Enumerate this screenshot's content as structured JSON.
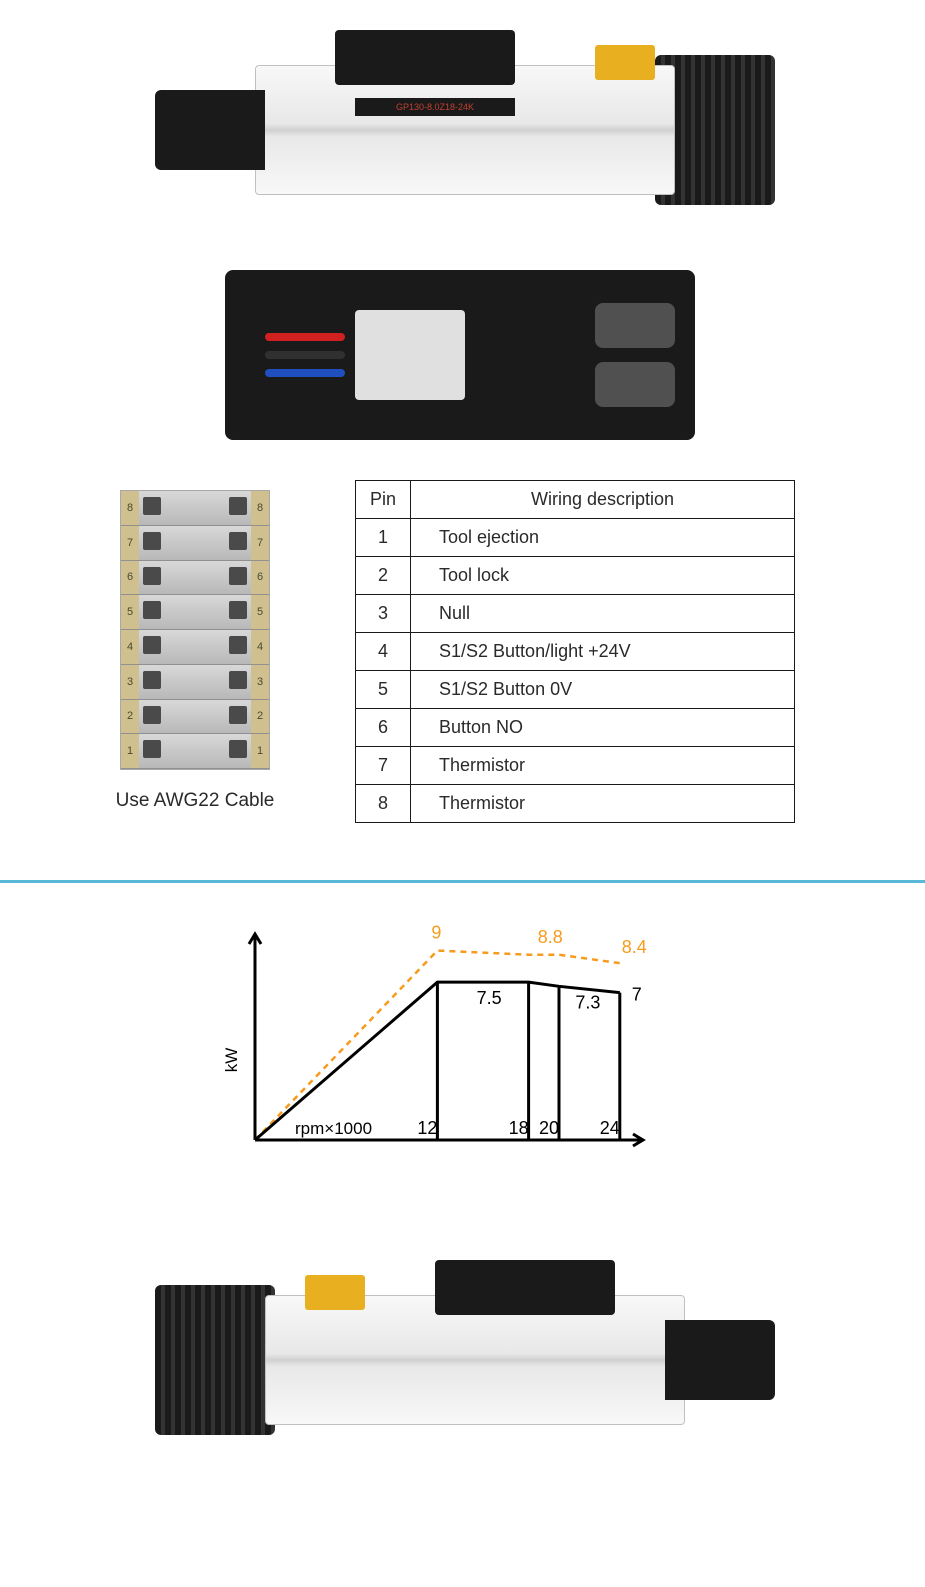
{
  "spindle_label": "GP130-8.0Z18-24K",
  "terminal_caption": "Use AWG22 Cable",
  "terminal_rows": 8,
  "wiring_table": {
    "headers": {
      "pin": "Pin",
      "desc": "Wiring description"
    },
    "rows": [
      {
        "pin": "1",
        "desc": "Tool ejection"
      },
      {
        "pin": "2",
        "desc": "Tool lock"
      },
      {
        "pin": "3",
        "desc": "Null"
      },
      {
        "pin": "4",
        "desc": "S1/S2   Button/light   +24V"
      },
      {
        "pin": "5",
        "desc": "S1/S2   Button   0V"
      },
      {
        "pin": "6",
        "desc": "Button   NO"
      },
      {
        "pin": "7",
        "desc": "Thermistor"
      },
      {
        "pin": "8",
        "desc": "Thermistor"
      }
    ]
  },
  "chart": {
    "type": "line",
    "y_label": "kW",
    "x_label": "rpm×1000",
    "x_label_fontsize": 17,
    "y_label_fontsize": 17,
    "data_label_fontsize": 18,
    "tick_fontsize": 18,
    "x_ticks": [
      12,
      18,
      20,
      24
    ],
    "x_range": [
      0,
      25
    ],
    "y_range": [
      0,
      9.5
    ],
    "background_color": "#ffffff",
    "axis_color": "#000000",
    "axis_width": 3,
    "series": [
      {
        "name": "s1",
        "color": "#f79b1e",
        "dash": "6 5",
        "width": 2.5,
        "points_x": [
          0,
          12,
          18,
          20,
          24
        ],
        "points_y": [
          0,
          9,
          8.8,
          8.8,
          8.4
        ],
        "labels": [
          {
            "x": 12,
            "y": 9,
            "text": "9",
            "dx": -6,
            "dy": -12
          },
          {
            "x": 19,
            "y": 8.8,
            "text": "8.8",
            "dx": -6,
            "dy": -12
          },
          {
            "x": 24,
            "y": 8.4,
            "text": "8.4",
            "dx": 2,
            "dy": -10
          }
        ]
      },
      {
        "name": "s6",
        "color": "#000000",
        "dash": "",
        "width": 3,
        "points_x": [
          0,
          12,
          18,
          20,
          24
        ],
        "points_y": [
          0,
          7.5,
          7.5,
          7.3,
          7
        ],
        "labels": [
          {
            "x": 15.5,
            "y": 7.5,
            "text": "7.5",
            "dx": -14,
            "dy": 22
          },
          {
            "x": 22,
            "y": 7.3,
            "text": "7.3",
            "dx": -14,
            "dy": 22
          },
          {
            "x": 24,
            "y": 7,
            "text": "7",
            "dx": 12,
            "dy": 8
          }
        ],
        "droplines_x": [
          12,
          18,
          20,
          24
        ]
      }
    ]
  },
  "colors": {
    "divider": "#5ab8d8",
    "text": "#2a2a2a"
  }
}
